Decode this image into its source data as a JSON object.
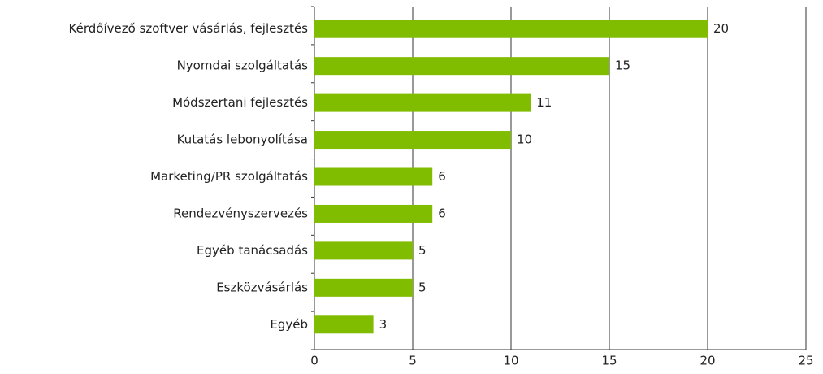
{
  "chart_data": {
    "type": "bar",
    "orientation": "horizontal",
    "categories": [
      "Kérdőívező szoftver vásárlás, fejlesztés",
      "Nyomdai szolgáltatás",
      "Módszertani fejlesztés",
      "Kutatás lebonyolítása",
      "Marketing/PR szolgáltatás",
      "Rendezvényszervezés",
      "Egyéb tanácsadás",
      "Eszközvásárlás",
      "Egyéb"
    ],
    "values": [
      20,
      15,
      11,
      10,
      6,
      6,
      5,
      5,
      3
    ],
    "color": "#80bc00",
    "xlim": [
      0,
      25
    ],
    "xticks": [
      0,
      5,
      10,
      15,
      20,
      25
    ],
    "grid": true
  }
}
